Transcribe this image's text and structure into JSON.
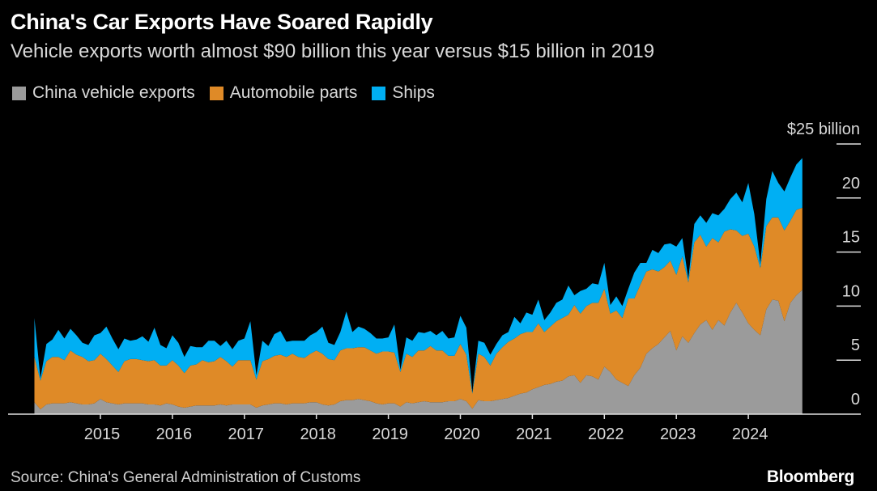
{
  "title": "China's Car Exports Have Soared Rapidly",
  "subtitle": "Vehicle exports worth almost $90 billion this year versus $15 billion in 2019",
  "source": "Source: China's General Administration of Customs",
  "logo": "Bloomberg",
  "colors": {
    "vehicles": "#9b9b9b",
    "parts": "#df8a27",
    "ships": "#00aff3",
    "background": "#000000"
  },
  "chart_data": {
    "type": "area",
    "stacked": true,
    "title": "China's Car Exports Have Soared Rapidly",
    "ylabel_unit": "$25 billion",
    "ylim": [
      0,
      25
    ],
    "yticks": [
      0,
      5,
      10,
      15,
      20,
      25
    ],
    "ytick_labels": [
      "0",
      "5",
      "10",
      "15",
      "20",
      "$25 billion"
    ],
    "xticks": [
      "2015",
      "2016",
      "2017",
      "2018",
      "2019",
      "2020",
      "2021",
      "2022",
      "2023",
      "2024"
    ],
    "legend_position": "top-left",
    "grid": false,
    "x": [
      "2014-02",
      "2014-03",
      "2014-04",
      "2014-05",
      "2014-06",
      "2014-07",
      "2014-08",
      "2014-09",
      "2014-10",
      "2014-11",
      "2014-12",
      "2015-01",
      "2015-02",
      "2015-03",
      "2015-04",
      "2015-05",
      "2015-06",
      "2015-07",
      "2015-08",
      "2015-09",
      "2015-10",
      "2015-11",
      "2015-12",
      "2016-01",
      "2016-02",
      "2016-03",
      "2016-04",
      "2016-05",
      "2016-06",
      "2016-07",
      "2016-08",
      "2016-09",
      "2016-10",
      "2016-11",
      "2016-12",
      "2017-01",
      "2017-02",
      "2017-03",
      "2017-04",
      "2017-05",
      "2017-06",
      "2017-07",
      "2017-08",
      "2017-09",
      "2017-10",
      "2017-11",
      "2017-12",
      "2018-01",
      "2018-02",
      "2018-03",
      "2018-04",
      "2018-05",
      "2018-06",
      "2018-07",
      "2018-08",
      "2018-09",
      "2018-10",
      "2018-11",
      "2018-12",
      "2019-01",
      "2019-02",
      "2019-03",
      "2019-04",
      "2019-05",
      "2019-06",
      "2019-07",
      "2019-08",
      "2019-09",
      "2019-10",
      "2019-11",
      "2019-12",
      "2020-01",
      "2020-02",
      "2020-03",
      "2020-04",
      "2020-05",
      "2020-06",
      "2020-07",
      "2020-08",
      "2020-09",
      "2020-10",
      "2020-11",
      "2020-12",
      "2021-01",
      "2021-02",
      "2021-03",
      "2021-04",
      "2021-05",
      "2021-06",
      "2021-07",
      "2021-08",
      "2021-09",
      "2021-10",
      "2021-11",
      "2021-12",
      "2022-01",
      "2022-02",
      "2022-03",
      "2022-04",
      "2022-05",
      "2022-06",
      "2022-07",
      "2022-08",
      "2022-09",
      "2022-10",
      "2022-11",
      "2022-12",
      "2023-01",
      "2023-02",
      "2023-03",
      "2023-04",
      "2023-05",
      "2023-06",
      "2023-07",
      "2023-08",
      "2023-09",
      "2023-10",
      "2023-11",
      "2023-12",
      "2024-01",
      "2024-02",
      "2024-03",
      "2024-04",
      "2024-05",
      "2024-06",
      "2024-07",
      "2024-08",
      "2024-09",
      "2024-10"
    ],
    "series": [
      {
        "name": "China vehicle exports",
        "color": "#9b9b9b",
        "values": [
          1.1,
          0.45,
          0.9,
          1.0,
          1.0,
          1.0,
          1.1,
          1.0,
          0.9,
          0.9,
          1.0,
          1.4,
          1.1,
          1.0,
          0.9,
          1.0,
          1.0,
          1.0,
          1.0,
          0.9,
          0.9,
          0.8,
          1.0,
          0.9,
          0.7,
          0.6,
          0.7,
          0.8,
          0.8,
          0.8,
          0.8,
          0.9,
          0.8,
          0.9,
          0.9,
          0.9,
          0.9,
          0.6,
          0.8,
          0.9,
          1.0,
          1.0,
          0.9,
          1.0,
          1.0,
          1.0,
          1.1,
          1.1,
          0.9,
          0.8,
          0.9,
          1.2,
          1.3,
          1.3,
          1.4,
          1.3,
          1.2,
          1.0,
          0.9,
          1.0,
          1.0,
          0.7,
          1.1,
          1.0,
          1.1,
          1.2,
          1.1,
          1.1,
          1.1,
          1.2,
          1.2,
          1.4,
          1.2,
          0.5,
          1.3,
          1.2,
          1.2,
          1.3,
          1.4,
          1.5,
          1.7,
          1.9,
          2.0,
          2.3,
          2.5,
          2.7,
          2.8,
          3.0,
          3.1,
          3.5,
          3.6,
          2.9,
          3.6,
          3.5,
          3.2,
          4.4,
          3.9,
          3.2,
          2.9,
          2.6,
          3.6,
          4.3,
          5.6,
          6.1,
          6.5,
          7.1,
          7.7,
          5.9,
          7.2,
          6.6,
          7.5,
          8.3,
          8.7,
          7.8,
          8.7,
          8.2,
          9.4,
          10.3,
          9.4,
          8.4,
          7.8,
          7.3,
          9.7,
          10.6,
          10.5,
          8.6,
          10.3,
          11.0,
          11.5
        ]
      },
      {
        "name": "Automobile parts",
        "color": "#df8a27",
        "values": [
          4.2,
          2.65,
          4.0,
          4.3,
          4.3,
          4.0,
          4.8,
          4.5,
          4.4,
          4.0,
          4.0,
          4.2,
          4.0,
          3.5,
          3.0,
          3.9,
          4.1,
          4.1,
          4.0,
          4.0,
          4.1,
          3.7,
          3.5,
          4.1,
          3.8,
          3.2,
          3.8,
          3.8,
          4.2,
          4.0,
          4.1,
          4.4,
          4.1,
          3.5,
          4.1,
          4.1,
          4.1,
          2.6,
          4.1,
          4.2,
          4.4,
          4.5,
          4.4,
          4.6,
          4.3,
          4.2,
          4.5,
          4.8,
          4.7,
          4.3,
          4.1,
          4.7,
          4.8,
          4.8,
          4.8,
          4.9,
          4.7,
          4.6,
          4.9,
          4.8,
          4.7,
          3.2,
          4.5,
          4.3,
          4.8,
          4.7,
          5.2,
          4.8,
          4.8,
          4.2,
          4.2,
          5.1,
          4.3,
          1.4,
          4.3,
          4.1,
          3.3,
          4.3,
          4.8,
          5.2,
          5.3,
          5.5,
          5.6,
          5.3,
          5.9,
          4.9,
          5.3,
          5.6,
          5.8,
          5.7,
          6.5,
          6.4,
          6.4,
          6.8,
          7.1,
          7.2,
          5.4,
          6.4,
          6.0,
          8.1,
          7.1,
          7.7,
          7.6,
          7.3,
          6.7,
          6.5,
          6.5,
          7.0,
          7.4,
          5.6,
          8.4,
          8.3,
          6.8,
          8.5,
          7.2,
          8.7,
          7.7,
          6.7,
          7.1,
          8.3,
          7.7,
          6.2,
          7.7,
          7.6,
          7.7,
          8.4,
          7.6,
          7.9,
          7.6
        ]
      },
      {
        "name": "Ships",
        "color": "#00aff3",
        "values": [
          3.6,
          0.2,
          1.6,
          1.6,
          2.5,
          2.0,
          2.0,
          1.8,
          1.3,
          1.5,
          2.3,
          1.9,
          3.0,
          2.5,
          2.1,
          2.1,
          1.7,
          1.8,
          2.2,
          1.8,
          3.0,
          1.9,
          1.6,
          2.3,
          2.1,
          1.5,
          1.8,
          1.6,
          1.2,
          2.0,
          1.9,
          1.0,
          1.9,
          1.6,
          1.8,
          2.0,
          3.6,
          0.4,
          1.9,
          1.2,
          2.0,
          2.2,
          1.4,
          1.2,
          1.5,
          1.6,
          1.7,
          1.7,
          2.5,
          1.5,
          1.4,
          1.7,
          3.4,
          1.5,
          1.9,
          1.7,
          1.6,
          1.4,
          1.2,
          1.3,
          2.6,
          0.2,
          1.5,
          1.5,
          1.7,
          1.6,
          1.4,
          1.4,
          1.8,
          1.6,
          1.7,
          2.6,
          2.5,
          0.1,
          1.2,
          1.3,
          1.0,
          0.9,
          1.1,
          0.9,
          2.0,
          1.0,
          1.8,
          1.6,
          2.2,
          1.1,
          1.3,
          1.7,
          1.7,
          2.7,
          0.9,
          2.1,
          1.6,
          1.8,
          1.7,
          2.4,
          0.8,
          1.3,
          1.1,
          0.9,
          2.4,
          2.0,
          0.8,
          1.8,
          1.7,
          2.1,
          1.6,
          2.6,
          1.7,
          0.3,
          1.7,
          1.8,
          2.2,
          2.3,
          2.5,
          2.1,
          2.8,
          3.5,
          3.1,
          4.7,
          3.0,
          0.4,
          2.5,
          4.3,
          3.2,
          3.6,
          4.0,
          4.2,
          4.6
        ]
      }
    ]
  }
}
